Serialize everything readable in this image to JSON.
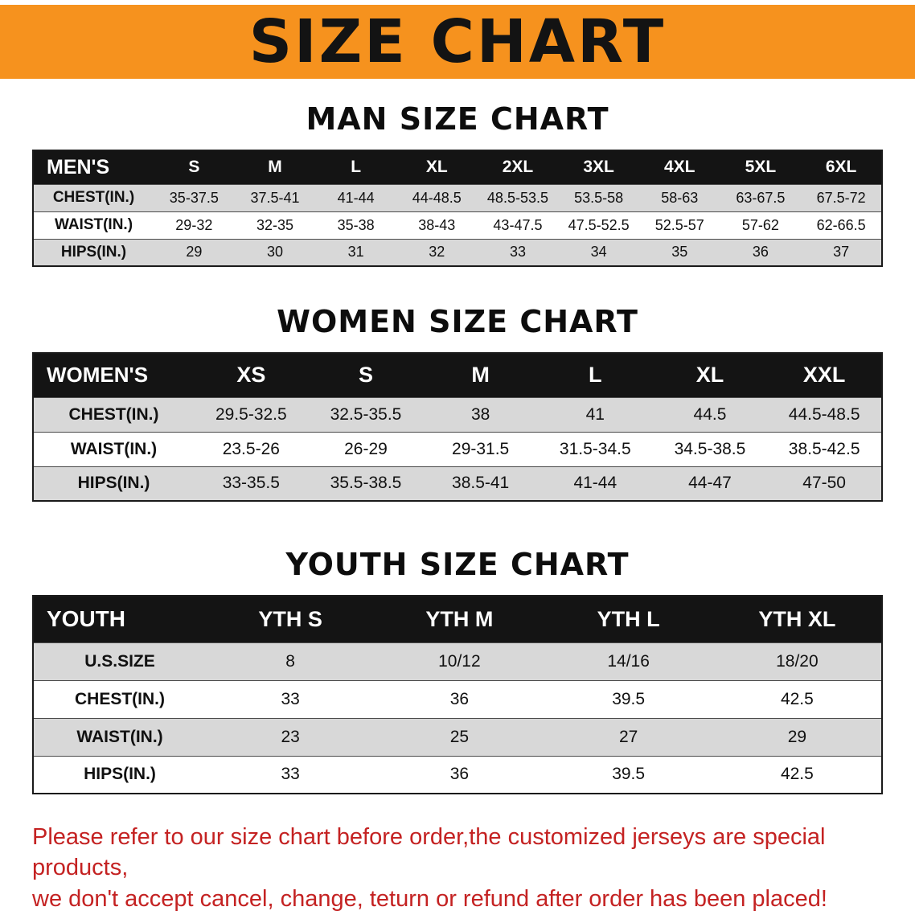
{
  "banner": {
    "title": "SIZE CHART",
    "bg_color": "#F6921E"
  },
  "men": {
    "heading": "MAN SIZE CHART",
    "table": {
      "header": [
        "MEN'S",
        "S",
        "M",
        "L",
        "XL",
        "2XL",
        "3XL",
        "4XL",
        "5XL",
        "6XL"
      ],
      "rows": [
        {
          "label": "CHEST(IN.)",
          "values": [
            "35-37.5",
            "37.5-41",
            "41-44",
            "44-48.5",
            "48.5-53.5",
            "53.5-58",
            "58-63",
            "63-67.5",
            "67.5-72"
          ]
        },
        {
          "label": "WAIST(IN.)",
          "values": [
            "29-32",
            "32-35",
            "35-38",
            "38-43",
            "43-47.5",
            "47.5-52.5",
            "52.5-57",
            "57-62",
            "62-66.5"
          ]
        },
        {
          "label": "HIPS(IN.)",
          "values": [
            "29",
            "30",
            "31",
            "32",
            "33",
            "34",
            "35",
            "36",
            "37"
          ]
        }
      ]
    }
  },
  "women": {
    "heading": "WOMEN SIZE CHART",
    "table": {
      "header": [
        "WOMEN'S",
        "XS",
        "S",
        "M",
        "L",
        "XL",
        "XXL"
      ],
      "rows": [
        {
          "label": "CHEST(IN.)",
          "values": [
            "29.5-32.5",
            "32.5-35.5",
            "38",
            "41",
            "44.5",
            "44.5-48.5"
          ]
        },
        {
          "label": "WAIST(IN.)",
          "values": [
            "23.5-26",
            "26-29",
            "29-31.5",
            "31.5-34.5",
            "34.5-38.5",
            "38.5-42.5"
          ]
        },
        {
          "label": "HIPS(IN.)",
          "values": [
            "33-35.5",
            "35.5-38.5",
            "38.5-41",
            "41-44",
            "44-47",
            "47-50"
          ]
        }
      ]
    }
  },
  "youth": {
    "heading": "YOUTH SIZE CHART",
    "table": {
      "header": [
        "YOUTH",
        "YTH S",
        "YTH M",
        "YTH L",
        "YTH XL"
      ],
      "rows": [
        {
          "label": "U.S.SIZE",
          "values": [
            "8",
            "10/12",
            "14/16",
            "18/20"
          ]
        },
        {
          "label": "CHEST(IN.)",
          "values": [
            "33",
            "36",
            "39.5",
            "42.5"
          ]
        },
        {
          "label": "WAIST(IN.)",
          "values": [
            "23",
            "25",
            "27",
            "29"
          ]
        },
        {
          "label": "HIPS(IN.)",
          "values": [
            "33",
            "36",
            "39.5",
            "42.5"
          ]
        }
      ]
    }
  },
  "disclaimer": {
    "line1": "Please refer to our size chart before order,the customized jerseys are special products,",
    "line2": "we don't accept cancel, change, teturn or refund after order has been placed!",
    "color": "#c42222"
  }
}
